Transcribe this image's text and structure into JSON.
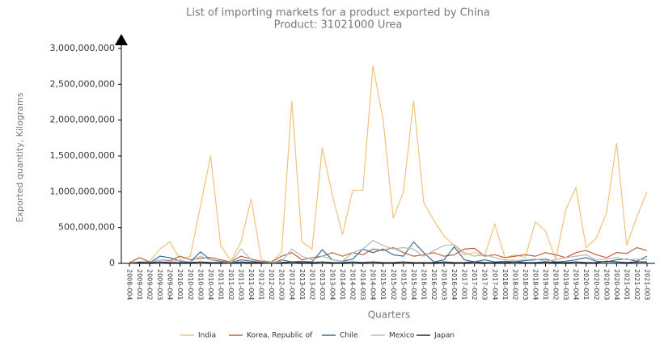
{
  "chart_data": {
    "type": "line",
    "title": "List of importing markets for a product exported by China",
    "subtitle": "Product: 31021000 Urea",
    "x_label": "Quarters",
    "y_label": "Exported quantity, Kilograms",
    "categories": [
      "2008-004",
      "2009-001",
      "2009-002",
      "2009-003",
      "2009-004",
      "2010-001",
      "2010-002",
      "2010-003",
      "2010-004",
      "2011-001",
      "2011-002",
      "2011-003",
      "2011-004",
      "2012-001",
      "2012-002",
      "2012-003",
      "2012-004",
      "2013-001",
      "2013-002",
      "2013-003",
      "2013-004",
      "2014-001",
      "2014-002",
      "2014-003",
      "2014-004",
      "2015-001",
      "2015-002",
      "2015-003",
      "2015-004",
      "2016-001",
      "2016-002",
      "2016-003",
      "2016-004",
      "2017-001",
      "2017-002",
      "2017-003",
      "2017-004",
      "2018-001",
      "2018-002",
      "2018-003",
      "2018-004",
      "2019-001",
      "2019-002",
      "2019-003",
      "2019-004",
      "2020-001",
      "2020-002",
      "2020-003",
      "2020-004",
      "2021-001",
      "2021-002",
      "2021-003"
    ],
    "series": [
      {
        "name": "India",
        "color": "#f0c27b",
        "values": [
          10000000.0,
          20000000.0,
          30000000.0,
          200000000.0,
          300000000.0,
          50000000.0,
          100000000.0,
          800000000.0,
          1500000000.0,
          250000000.0,
          30000000.0,
          300000000.0,
          900000000.0,
          50000000.0,
          10000000.0,
          150000000.0,
          2270000000.0,
          300000000.0,
          200000000.0,
          1620000000.0,
          950000000.0,
          400000000.0,
          1020000000.0,
          1020000000.0,
          2760000000.0,
          2000000000.0,
          630000000.0,
          1000000000.0,
          2270000000.0,
          850000000.0,
          600000000.0,
          380000000.0,
          250000000.0,
          120000000.0,
          150000000.0,
          100000000.0,
          550000000.0,
          80000000.0,
          120000000.0,
          80000000.0,
          580000000.0,
          450000000.0,
          50000000.0,
          750000000.0,
          1060000000.0,
          220000000.0,
          350000000.0,
          700000000.0,
          1680000000.0,
          250000000.0,
          650000000.0,
          1000000000.0
        ]
      },
      {
        "name": "Korea, Republic of",
        "color": "#c0603a",
        "values": [
          10000000.0,
          80000000.0,
          20000000.0,
          50000000.0,
          40000000.0,
          100000000.0,
          50000000.0,
          70000000.0,
          80000000.0,
          50000000.0,
          20000000.0,
          100000000.0,
          60000000.0,
          30000000.0,
          20000000.0,
          100000000.0,
          150000000.0,
          50000000.0,
          80000000.0,
          100000000.0,
          150000000.0,
          100000000.0,
          150000000.0,
          120000000.0,
          200000000.0,
          180000000.0,
          220000000.0,
          150000000.0,
          100000000.0,
          120000000.0,
          150000000.0,
          100000000.0,
          120000000.0,
          200000000.0,
          210000000.0,
          100000000.0,
          120000000.0,
          80000000.0,
          100000000.0,
          120000000.0,
          100000000.0,
          150000000.0,
          120000000.0,
          80000000.0,
          150000000.0,
          180000000.0,
          120000000.0,
          80000000.0,
          150000000.0,
          140000000.0,
          220000000.0,
          180000000.0
        ]
      },
      {
        "name": "Chile",
        "color": "#3a6f9a",
        "values": [
          0,
          20000000.0,
          10000000.0,
          100000000.0,
          80000000.0,
          30000000.0,
          20000000.0,
          160000000.0,
          50000000.0,
          30000000.0,
          10000000.0,
          50000000.0,
          30000000.0,
          10000000.0,
          0,
          50000000.0,
          20000000.0,
          30000000.0,
          20000000.0,
          190000000.0,
          50000000.0,
          30000000.0,
          60000000.0,
          200000000.0,
          150000000.0,
          200000000.0,
          120000000.0,
          100000000.0,
          300000000.0,
          150000000.0,
          20000000.0,
          50000000.0,
          230000000.0,
          50000000.0,
          20000000.0,
          50000000.0,
          20000000.0,
          30000000.0,
          20000000.0,
          40000000.0,
          50000000.0,
          60000000.0,
          20000000.0,
          30000000.0,
          50000000.0,
          80000000.0,
          30000000.0,
          20000000.0,
          50000000.0,
          60000000.0,
          30000000.0,
          100000000.0
        ]
      },
      {
        "name": "Mexico",
        "color": "#b8b8b8",
        "values": [
          0,
          10000000.0,
          20000000.0,
          50000000.0,
          30000000.0,
          40000000.0,
          20000000.0,
          100000000.0,
          50000000.0,
          20000000.0,
          10000000.0,
          200000000.0,
          50000000.0,
          20000000.0,
          10000000.0,
          30000000.0,
          200000000.0,
          100000000.0,
          50000000.0,
          100000000.0,
          50000000.0,
          30000000.0,
          150000000.0,
          200000000.0,
          320000000.0,
          250000000.0,
          200000000.0,
          220000000.0,
          200000000.0,
          100000000.0,
          180000000.0,
          250000000.0,
          260000000.0,
          150000000.0,
          100000000.0,
          120000000.0,
          80000000.0,
          50000000.0,
          40000000.0,
          50000000.0,
          60000000.0,
          30000000.0,
          50000000.0,
          80000000.0,
          100000000.0,
          120000000.0,
          50000000.0,
          60000000.0,
          80000000.0,
          50000000.0,
          60000000.0,
          50000000.0
        ]
      },
      {
        "name": "Japan",
        "color": "#1a2a3a",
        "values": [
          0,
          10000000.0,
          10000000.0,
          20000000.0,
          10000000.0,
          10000000.0,
          10000000.0,
          20000000.0,
          10000000.0,
          10000000.0,
          0,
          20000000.0,
          10000000.0,
          10000000.0,
          0,
          10000000.0,
          20000000.0,
          10000000.0,
          10000000.0,
          20000000.0,
          10000000.0,
          10000000.0,
          20000000.0,
          10000000.0,
          20000000.0,
          10000000.0,
          10000000.0,
          20000000.0,
          10000000.0,
          10000000.0,
          10000000.0,
          20000000.0,
          10000000.0,
          10000000.0,
          20000000.0,
          10000000.0,
          10000000.0,
          10000000.0,
          20000000.0,
          10000000.0,
          10000000.0,
          20000000.0,
          10000000.0,
          10000000.0,
          20000000.0,
          10000000.0,
          10000000.0,
          30000000.0,
          20000000.0,
          10000000.0,
          20000000.0,
          20000000.0
        ]
      }
    ],
    "ylim": [
      0,
      3000000000
    ],
    "yticks": [
      0,
      {
        "value": 500000000,
        "label": "500,000,000"
      },
      {
        "value": 1000000000,
        "label": "1,000,000,000"
      },
      {
        "value": 1500000000,
        "label": "1,500,000,000"
      },
      {
        "value": 2000000000,
        "label": "2,000,000,000"
      },
      {
        "value": 2500000000,
        "label": "2,500,000,000"
      },
      {
        "value": 3000000000,
        "label": "3,000,000,000"
      }
    ],
    "grid": false,
    "legend": "bottom"
  }
}
